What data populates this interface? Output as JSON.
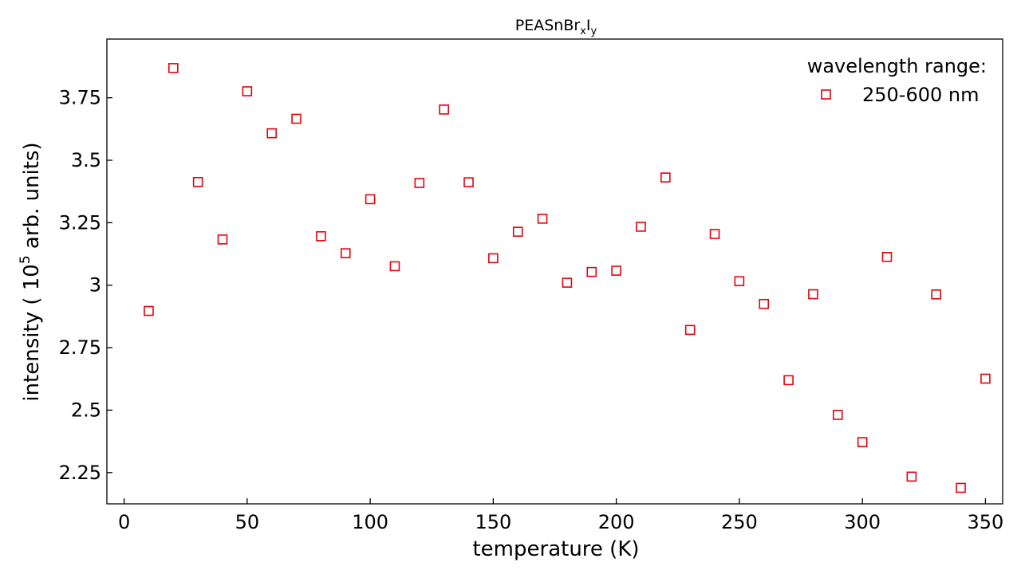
{
  "chart_data": {
    "type": "scatter",
    "title": "PEASnBr",
    "title_sub1": "x",
    "title_mid": "I",
    "title_sub2": "y",
    "xlabel": "temperature (K)",
    "ylabel_prefix": "intensity ( 10",
    "ylabel_sup": "5",
    "ylabel_suffix": " arb. units)",
    "xlim": [
      -7,
      357
    ],
    "ylim": [
      2.125,
      3.985
    ],
    "xticks": [
      0,
      50,
      100,
      150,
      200,
      250,
      300,
      350
    ],
    "xtick_labels": [
      "0",
      "50",
      "100",
      "150",
      "200",
      "250",
      "300",
      "350"
    ],
    "yticks": [
      2.25,
      2.5,
      2.75,
      3.0,
      3.25,
      3.5,
      3.75
    ],
    "ytick_labels": [
      "2.25",
      "2.5",
      "2.75",
      "3",
      "3.25",
      "3.5",
      "3.75"
    ],
    "grid": false,
    "legend": {
      "title": "wavelength range:",
      "placement": "top-right",
      "entries": [
        "250-600 nm"
      ]
    },
    "series": [
      {
        "name": "250-600 nm",
        "marker": "square",
        "color": "#e8000b",
        "x": [
          10,
          20,
          30,
          40,
          50,
          60,
          70,
          80,
          90,
          100,
          110,
          120,
          130,
          140,
          150,
          160,
          170,
          180,
          190,
          200,
          210,
          220,
          230,
          240,
          250,
          260,
          270,
          280,
          290,
          300,
          310,
          320,
          330,
          340,
          350
        ],
        "y": [
          2.897,
          3.869,
          3.413,
          3.183,
          3.776,
          3.608,
          3.666,
          3.196,
          3.128,
          3.344,
          3.076,
          3.409,
          3.703,
          3.412,
          3.108,
          3.214,
          3.266,
          3.01,
          3.053,
          3.058,
          3.234,
          3.431,
          2.821,
          3.205,
          3.016,
          2.925,
          2.62,
          2.964,
          2.481,
          2.372,
          3.113,
          2.234,
          2.963,
          2.189,
          2.626
        ]
      }
    ]
  }
}
